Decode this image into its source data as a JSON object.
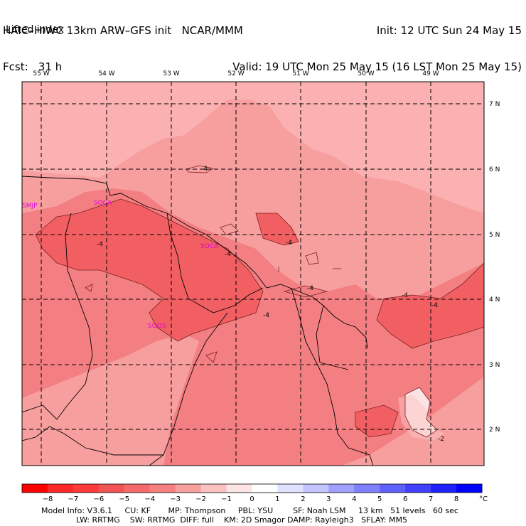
{
  "header": {
    "model_line": "HAIC–HIWC 13km ARW–GFS init   NCAR/MMM",
    "fcst_line": "Fcst:   31 h",
    "init_line": "Init: 12 UTC Sun 24 May 15",
    "valid_line": "Valid: 19 UTC Mon 25 May 15 (16 LST Mon 25 May 15)",
    "field_name": "Lifted index"
  },
  "map": {
    "longitude_labels": [
      "55 W",
      "54 W",
      "53 W",
      "52 W",
      "51 W",
      "50 W",
      "49 W"
    ],
    "latitude_labels": [
      "7 N",
      "6 N",
      "5 N",
      "4 N",
      "3 N",
      "2 N"
    ],
    "contour_labels": [
      "-4",
      "-4",
      "-4",
      "-4",
      "-4",
      "-4",
      "-4",
      "-4",
      "-2"
    ],
    "stations": [
      "SMJP",
      "SOCA",
      "SOCA",
      "SOOS"
    ],
    "fill_colors": {
      "band_m5": "#f25f63",
      "band_m4": "#f47f82",
      "band_m3": "#f79e9f",
      "band_m2": "#fbc3c3",
      "band_m1": "#fde4e4"
    }
  },
  "colorbar": {
    "ticks": [
      "−8",
      "−7",
      "−6",
      "−5",
      "−4",
      "−3",
      "−2",
      "−1",
      "0",
      "1",
      "2",
      "3",
      "4",
      "5",
      "6",
      "7",
      "8"
    ],
    "unit": "°C",
    "colors": [
      "#ff0000",
      "#ff2727",
      "#ff3a3a",
      "#f25555",
      "#f46a6a",
      "#f48080",
      "#f79e9e",
      "#fbc0c0",
      "#fde4e4",
      "#ffffff",
      "#e0e0ff",
      "#c4c4ff",
      "#a0a0ff",
      "#8080ff",
      "#6060ff",
      "#4040ff",
      "#2020ff",
      "#0000ff"
    ]
  },
  "footer": {
    "line1": "Model Info: V3.6.1     CU: KF       MP: Thompson     PBL: YSU        SF: Noah LSM     13 km   51 levels   60 sec",
    "line2": "              LW: RRTMG    SW: RRTMG  DIFF: full    KM: 2D Smagor DAMP: Rayleigh3   SFLAY: MM5"
  }
}
